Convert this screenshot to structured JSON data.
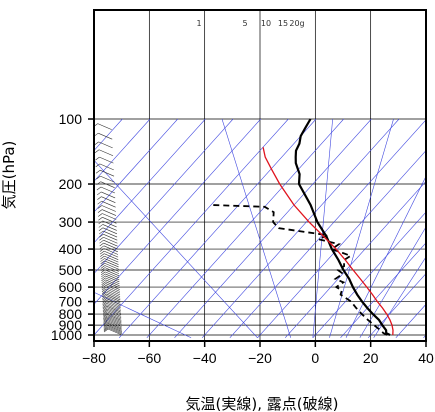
{
  "chart_data": {
    "type": "skew-t",
    "xlabel": "気温(実線), 露点(破線)",
    "ylabel": "気圧(hPa)",
    "xlim": [
      -80,
      40
    ],
    "ylim": [
      1030,
      100
    ],
    "x_ticks": [
      -80,
      -60,
      -40,
      -20,
      0,
      20,
      40
    ],
    "x_tick_labels": [
      "−80",
      "−60",
      "−40",
      "−20",
      "0",
      "20",
      "40"
    ],
    "y_ticks": [
      100,
      200,
      300,
      400,
      500,
      600,
      700,
      800,
      900,
      1000
    ],
    "y_scale": "log",
    "grid": true,
    "mixing_ratio_labels": [
      "1",
      "5",
      "10",
      "15",
      "20g"
    ],
    "colors": {
      "temperature": "#000000",
      "dewpoint": "#000000",
      "parcel": "#e0141e",
      "isotherm": "#4048e0",
      "grid": "#000000"
    },
    "series": [
      {
        "key": "temperature",
        "points": [
          [
            1000,
            27
          ],
          [
            980,
            25
          ],
          [
            950,
            24
          ],
          [
            925,
            22.5
          ],
          [
            900,
            21
          ],
          [
            850,
            18
          ],
          [
            800,
            14
          ],
          [
            750,
            10
          ],
          [
            700,
            6
          ],
          [
            650,
            2
          ],
          [
            600,
            -2
          ],
          [
            550,
            -6
          ],
          [
            500,
            -11
          ],
          [
            450,
            -16
          ],
          [
            400,
            -22
          ],
          [
            350,
            -28
          ],
          [
            300,
            -36
          ],
          [
            250,
            -44
          ],
          [
            200,
            -55
          ],
          [
            180,
            -58
          ],
          [
            160,
            -63
          ],
          [
            150,
            -65
          ],
          [
            140,
            -67
          ],
          [
            130,
            -68
          ],
          [
            120,
            -70
          ],
          [
            110,
            -71
          ],
          [
            100,
            -72
          ]
        ]
      },
      {
        "key": "dewpoint",
        "points": [
          [
            1000,
            26
          ],
          [
            980,
            24
          ],
          [
            950,
            22
          ],
          [
            925,
            20
          ],
          [
            900,
            18
          ],
          [
            850,
            14
          ],
          [
            800,
            10
          ],
          [
            750,
            6
          ],
          [
            700,
            2
          ],
          [
            650,
            -4
          ],
          [
            620,
            -5
          ],
          [
            600,
            -8
          ],
          [
            570,
            -7
          ],
          [
            550,
            -11
          ],
          [
            520,
            -10
          ],
          [
            500,
            -13
          ],
          [
            480,
            -12
          ],
          [
            450,
            -14
          ],
          [
            430,
            -13
          ],
          [
            400,
            -22
          ],
          [
            380,
            -21
          ],
          [
            360,
            -30
          ],
          [
            345,
            -28
          ],
          [
            330,
            -40
          ],
          [
            320,
            -48
          ],
          [
            300,
            -52
          ],
          [
            270,
            -55
          ],
          [
            255,
            -60
          ],
          [
            250,
            -80
          ]
        ]
      },
      {
        "key": "parcel",
        "points": [
          [
            1000,
            28
          ],
          [
            950,
            26.5
          ],
          [
            900,
            24.5
          ],
          [
            850,
            22
          ],
          [
            800,
            19
          ],
          [
            750,
            15.5
          ],
          [
            700,
            11.5
          ],
          [
            650,
            7.5
          ],
          [
            600,
            3
          ],
          [
            550,
            -2
          ],
          [
            500,
            -7.5
          ],
          [
            450,
            -13.5
          ],
          [
            400,
            -20.5
          ],
          [
            350,
            -29
          ],
          [
            300,
            -39
          ],
          [
            250,
            -50
          ],
          [
            200,
            -62
          ],
          [
            170,
            -70
          ],
          [
            150,
            -76
          ],
          [
            135,
            -80
          ]
        ]
      }
    ]
  }
}
